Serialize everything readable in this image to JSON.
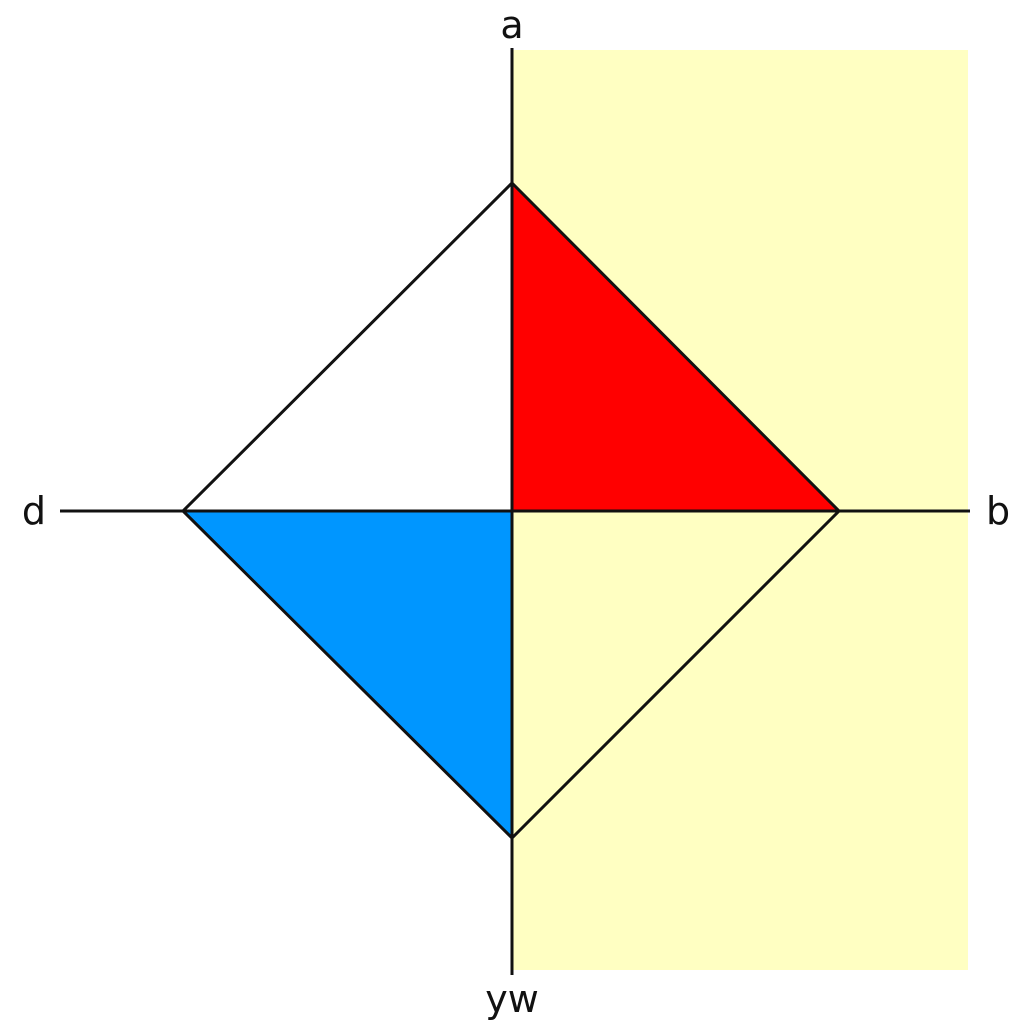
{
  "labels": {
    "top": "a",
    "right": "b",
    "bottom": "yᴡ",
    "left": "d"
  },
  "colors": {
    "shaded_region": "#ffffc2",
    "top_right_triangle": "#ff0000",
    "bottom_left_triangle": "#0096ff",
    "bottom_right_triangle": "#ffffc2",
    "top_left_triangle": "#ffffff",
    "line": "#111111"
  }
}
